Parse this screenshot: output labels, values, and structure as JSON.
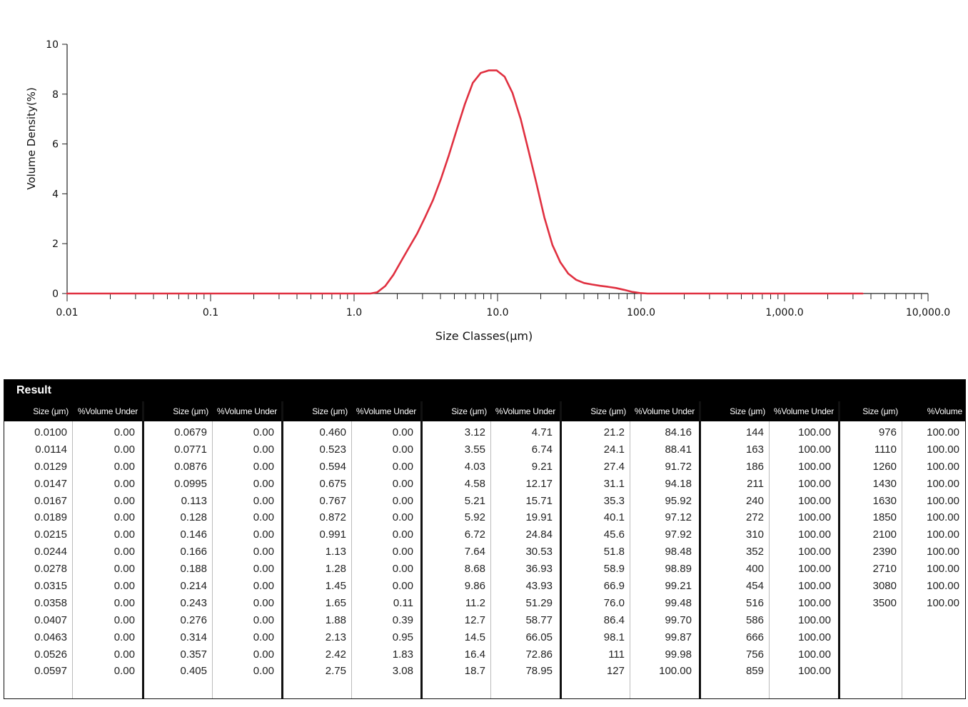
{
  "chart_data": {
    "type": "line",
    "xlabel": "Size Classes(μm)",
    "ylabel": "Volume Density(%)",
    "x_scale": "log",
    "xlim": [
      0.01,
      10000
    ],
    "ylim": [
      0,
      10
    ],
    "x_tick_labels": [
      "0.01",
      "0.1",
      "1.0",
      "10.0",
      "100.0",
      "1,000.0",
      "10,000.0"
    ],
    "y_tick_labels": [
      "0",
      "2",
      "4",
      "6",
      "8",
      "10"
    ],
    "grid": false,
    "series": [
      {
        "color": "#e03040",
        "x": [
          0.01,
          0.1,
          1.0,
          1.3,
          1.45,
          1.65,
          1.88,
          2.13,
          2.42,
          2.75,
          3.12,
          3.55,
          4.03,
          4.58,
          5.21,
          5.92,
          6.72,
          7.64,
          8.68,
          9.86,
          11.2,
          12.7,
          14.5,
          16.4,
          18.7,
          21.2,
          24.1,
          27.4,
          31.1,
          35.3,
          40.1,
          45.6,
          51.8,
          58.9,
          66.9,
          76.0,
          86.4,
          98.1,
          111,
          127,
          144,
          200,
          1000,
          3500
        ],
        "y": [
          0,
          0,
          0,
          0,
          0.05,
          0.3,
          0.75,
          1.3,
          1.85,
          2.4,
          3.05,
          3.75,
          4.6,
          5.55,
          6.6,
          7.6,
          8.45,
          8.85,
          8.95,
          8.95,
          8.7,
          8.05,
          7.0,
          5.75,
          4.4,
          3.05,
          1.95,
          1.25,
          0.8,
          0.55,
          0.42,
          0.36,
          0.31,
          0.27,
          0.22,
          0.15,
          0.07,
          0.02,
          0.0,
          0,
          0,
          0,
          0,
          0
        ]
      }
    ]
  },
  "result": {
    "title": "Result",
    "col_size_label": "Size (μm)",
    "col_under_label": "%Volume Under",
    "blocks": [
      {
        "sizes": [
          "0.0100",
          "0.0114",
          "0.0129",
          "0.0147",
          "0.0167",
          "0.0189",
          "0.0215",
          "0.0244",
          "0.0278",
          "0.0315",
          "0.0358",
          "0.0407",
          "0.0463",
          "0.0526",
          "0.0597"
        ],
        "under": [
          "0.00",
          "0.00",
          "0.00",
          "0.00",
          "0.00",
          "0.00",
          "0.00",
          "0.00",
          "0.00",
          "0.00",
          "0.00",
          "0.00",
          "0.00",
          "0.00",
          "0.00"
        ]
      },
      {
        "sizes": [
          "0.0679",
          "0.0771",
          "0.0876",
          "0.0995",
          "0.113",
          "0.128",
          "0.146",
          "0.166",
          "0.188",
          "0.214",
          "0.243",
          "0.276",
          "0.314",
          "0.357",
          "0.405"
        ],
        "under": [
          "0.00",
          "0.00",
          "0.00",
          "0.00",
          "0.00",
          "0.00",
          "0.00",
          "0.00",
          "0.00",
          "0.00",
          "0.00",
          "0.00",
          "0.00",
          "0.00",
          "0.00"
        ]
      },
      {
        "sizes": [
          "0.460",
          "0.523",
          "0.594",
          "0.675",
          "0.767",
          "0.872",
          "0.991",
          "1.13",
          "1.28",
          "1.45",
          "1.65",
          "1.88",
          "2.13",
          "2.42",
          "2.75"
        ],
        "under": [
          "0.00",
          "0.00",
          "0.00",
          "0.00",
          "0.00",
          "0.00",
          "0.00",
          "0.00",
          "0.00",
          "0.00",
          "0.11",
          "0.39",
          "0.95",
          "1.83",
          "3.08"
        ]
      },
      {
        "sizes": [
          "3.12",
          "3.55",
          "4.03",
          "4.58",
          "5.21",
          "5.92",
          "6.72",
          "7.64",
          "8.68",
          "9.86",
          "11.2",
          "12.7",
          "14.5",
          "16.4",
          "18.7"
        ],
        "under": [
          "4.71",
          "6.74",
          "9.21",
          "12.17",
          "15.71",
          "19.91",
          "24.84",
          "30.53",
          "36.93",
          "43.93",
          "51.29",
          "58.77",
          "66.05",
          "72.86",
          "78.95"
        ]
      },
      {
        "sizes": [
          "21.2",
          "24.1",
          "27.4",
          "31.1",
          "35.3",
          "40.1",
          "45.6",
          "51.8",
          "58.9",
          "66.9",
          "76.0",
          "86.4",
          "98.1",
          "111",
          "127"
        ],
        "under": [
          "84.16",
          "88.41",
          "91.72",
          "94.18",
          "95.92",
          "97.12",
          "97.92",
          "98.48",
          "98.89",
          "99.21",
          "99.48",
          "99.70",
          "99.87",
          "99.98",
          "100.00"
        ]
      },
      {
        "sizes": [
          "144",
          "163",
          "186",
          "211",
          "240",
          "272",
          "310",
          "352",
          "400",
          "454",
          "516",
          "586",
          "666",
          "756",
          "859"
        ],
        "under": [
          "100.00",
          "100.00",
          "100.00",
          "100.00",
          "100.00",
          "100.00",
          "100.00",
          "100.00",
          "100.00",
          "100.00",
          "100.00",
          "100.00",
          "100.00",
          "100.00",
          "100.00"
        ]
      },
      {
        "sizes": [
          "976",
          "1110",
          "1260",
          "1430",
          "1630",
          "1850",
          "2100",
          "2390",
          "2710",
          "3080",
          "3500"
        ],
        "under": [
          "100.00",
          "100.00",
          "100.00",
          "100.00",
          "100.00",
          "100.00",
          "100.00",
          "100.00",
          "100.00",
          "100.00",
          "100.00"
        ]
      }
    ]
  }
}
